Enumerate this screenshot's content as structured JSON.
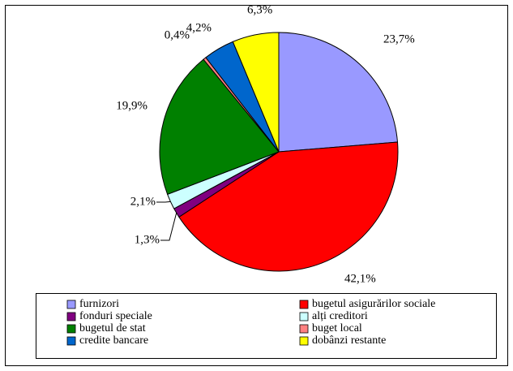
{
  "chart_data": {
    "type": "pie",
    "categories": [
      "furnizori",
      "bugetul asigurărilor sociale",
      "fonduri speciale",
      "alți creditori",
      "bugetul de stat",
      "buget local",
      "credite bancare",
      "dobânzi restante"
    ],
    "values": [
      23.7,
      42.1,
      1.3,
      2.1,
      19.9,
      0.4,
      4.2,
      6.3
    ],
    "value_labels": [
      "23,7%",
      "42,1%",
      "1,3%",
      "2,1%",
      "19,9%",
      "0,4%",
      "4,2%",
      "6,3%"
    ],
    "colors": [
      "#9999ff",
      "#ff0000",
      "#800080",
      "#ccffff",
      "#008000",
      "#ff8080",
      "#0066cc",
      "#ffff00"
    ]
  }
}
